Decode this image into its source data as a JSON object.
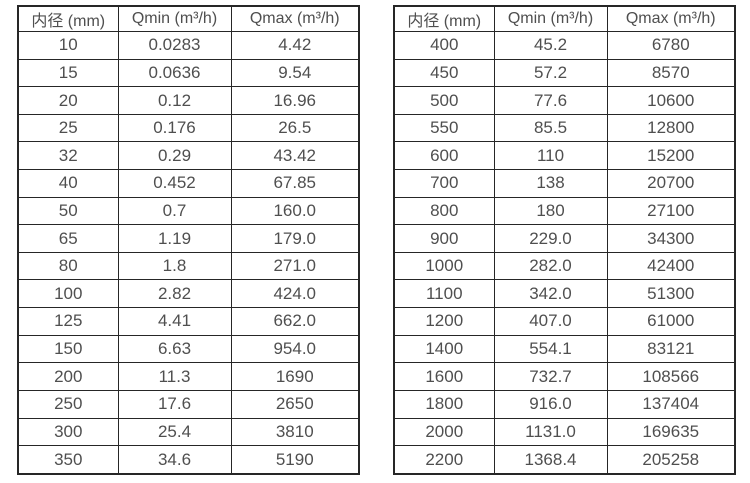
{
  "page": {
    "background": "#ffffff"
  },
  "colors": {
    "table_border": "#262626",
    "text": "#4f4f4f",
    "background": "#ffffff"
  },
  "chart_data": [
    {
      "type": "table",
      "title": "",
      "columns": [
        "内径 (mm)",
        "Qmin (m³/h)",
        "Qmax (m³/h)"
      ],
      "rows": [
        [
          "10",
          "0.0283",
          "4.42"
        ],
        [
          "15",
          "0.0636",
          "9.54"
        ],
        [
          "20",
          "0.12",
          "16.96"
        ],
        [
          "25",
          "0.176",
          "26.5"
        ],
        [
          "32",
          "0.29",
          "43.42"
        ],
        [
          "40",
          "0.452",
          "67.85"
        ],
        [
          "50",
          "0.7",
          "160.0"
        ],
        [
          "65",
          "1.19",
          "179.0"
        ],
        [
          "80",
          "1.8",
          "271.0"
        ],
        [
          "100",
          "2.82",
          "424.0"
        ],
        [
          "125",
          "4.41",
          "662.0"
        ],
        [
          "150",
          "6.63",
          "954.0"
        ],
        [
          "200",
          "11.3",
          "1690"
        ],
        [
          "250",
          "17.6",
          "2650"
        ],
        [
          "300",
          "25.4",
          "3810"
        ],
        [
          "350",
          "34.6",
          "5190"
        ]
      ]
    },
    {
      "type": "table",
      "title": "",
      "columns": [
        "内径 (mm)",
        "Qmin (m³/h)",
        "Qmax (m³/h)"
      ],
      "rows": [
        [
          "400",
          "45.2",
          "6780"
        ],
        [
          "450",
          "57.2",
          "8570"
        ],
        [
          "500",
          "77.6",
          "10600"
        ],
        [
          "550",
          "85.5",
          "12800"
        ],
        [
          "600",
          "110",
          "15200"
        ],
        [
          "700",
          "138",
          "20700"
        ],
        [
          "800",
          "180",
          "27100"
        ],
        [
          "900",
          "229.0",
          "34300"
        ],
        [
          "1000",
          "282.0",
          "42400"
        ],
        [
          "1100",
          "342.0",
          "51300"
        ],
        [
          "1200",
          "407.0",
          "61000"
        ],
        [
          "1400",
          "554.1",
          "83121"
        ],
        [
          "1600",
          "732.7",
          "108566"
        ],
        [
          "1800",
          "916.0",
          "137404"
        ],
        [
          "2000",
          "1131.0",
          "169635"
        ],
        [
          "2200",
          "1368.4",
          "205258"
        ]
      ]
    }
  ]
}
